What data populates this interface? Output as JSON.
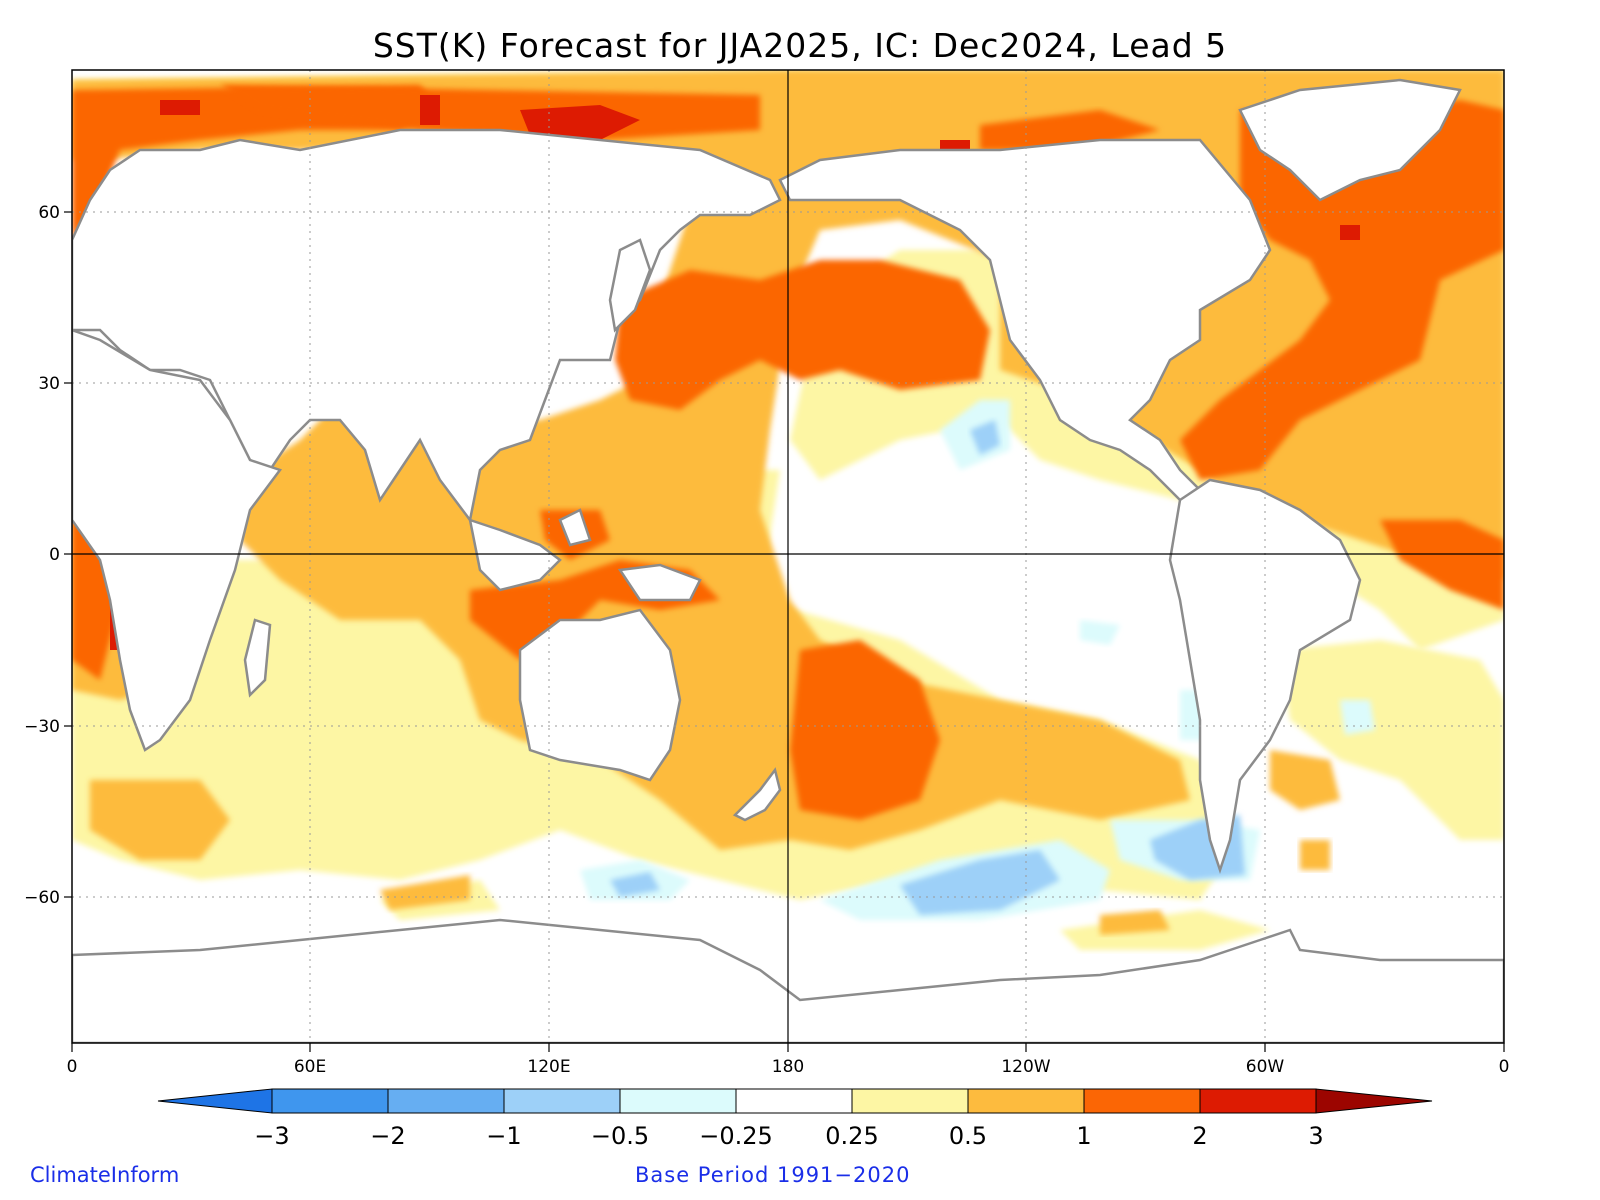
{
  "title": "SST(K) Forecast for JJA2025, IC: Dec2024, Lead 5",
  "axes": {
    "lon_ticks": [
      "0",
      "60E",
      "120E",
      "180",
      "120W",
      "60W",
      "0"
    ],
    "lat_ticks": [
      "60",
      "30",
      "0",
      "−30",
      "−60"
    ]
  },
  "colorbar": {
    "labels": [
      "−3",
      "−2",
      "−1",
      "−0.5",
      "−0.25",
      "0.25",
      "0.5",
      "1",
      "2",
      "3"
    ],
    "colors": [
      "#1e74e6",
      "#3f96ee",
      "#66aef2",
      "#9dd0f8",
      "#dcfbfc",
      "#ffffff",
      "#fdf6a4",
      "#fdbb3e",
      "#fb6605",
      "#dd1b02",
      "#9c0500"
    ]
  },
  "credits": {
    "left": "ClimateInform",
    "center": "Base Period 1991−2020"
  }
}
